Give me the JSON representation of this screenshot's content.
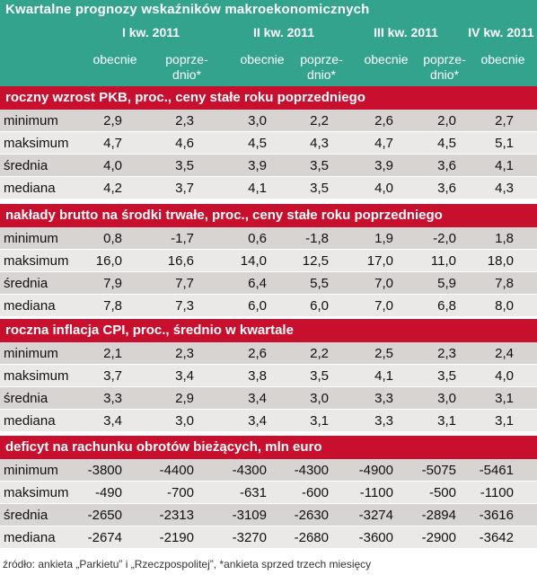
{
  "title": "Kwartalne prognozy wskaźników makroekonomicznych",
  "quarters": [
    "I kw. 2011",
    "II kw. 2011",
    "III kw. 2011",
    "IV kw. 2011"
  ],
  "subheaders": [
    "obecnie",
    "poprze-\ndnio*",
    "obecnie",
    "poprze-\ndnio*",
    "obecnie",
    "poprze-\ndnio*",
    "obecnie"
  ],
  "sections": [
    {
      "title": "roczny wzrost PKB, proc., ceny stałe roku poprzedniego",
      "rows": [
        {
          "label": "minimum",
          "values": [
            "2,9",
            "2,3",
            "3,0",
            "2,2",
            "2,6",
            "2,0",
            "2,7"
          ]
        },
        {
          "label": "maksimum",
          "values": [
            "4,7",
            "4,6",
            "4,5",
            "4,3",
            "4,7",
            "4,5",
            "5,1"
          ]
        },
        {
          "label": "średnia",
          "values": [
            "4,0",
            "3,5",
            "3,9",
            "3,5",
            "3,9",
            "3,6",
            "4,1"
          ]
        },
        {
          "label": "mediana",
          "values": [
            "4,2",
            "3,7",
            "4,1",
            "3,5",
            "4,0",
            "3,6",
            "4,3"
          ]
        }
      ]
    },
    {
      "title": "nakłady brutto na środki trwałe, proc., ceny stałe roku poprzedniego",
      "rows": [
        {
          "label": "minimum",
          "values": [
            "0,8",
            "-1,7",
            "0,6",
            "-1,8",
            "1,9",
            "-2,0",
            "1,8"
          ]
        },
        {
          "label": "maksimum",
          "values": [
            "16,0",
            "16,6",
            "14,0",
            "12,5",
            "17,0",
            "11,0",
            "18,0"
          ]
        },
        {
          "label": "średnia",
          "values": [
            "7,9",
            "7,7",
            "6,4",
            "5,5",
            "7,0",
            "5,9",
            "7,8"
          ]
        },
        {
          "label": "mediana",
          "values": [
            "7,8",
            "7,3",
            "6,0",
            "6,0",
            "7,0",
            "6,8",
            "8,0"
          ]
        }
      ]
    },
    {
      "title": "roczna inflacja CPI, proc., średnio w kwartale",
      "rows": [
        {
          "label": "minimum",
          "values": [
            "2,1",
            "2,3",
            "2,6",
            "2,2",
            "2,5",
            "2,3",
            "2,4"
          ]
        },
        {
          "label": "maksimum",
          "values": [
            "3,7",
            "3,4",
            "3,8",
            "3,5",
            "4,1",
            "3,5",
            "4,0"
          ]
        },
        {
          "label": "średnia",
          "values": [
            "3,3",
            "2,9",
            "3,4",
            "3,0",
            "3,3",
            "3,0",
            "3,1"
          ]
        },
        {
          "label": "mediana",
          "values": [
            "3,4",
            "3,0",
            "3,4",
            "3,1",
            "3,3",
            "3,1",
            "3,1"
          ]
        }
      ]
    },
    {
      "title": "deficyt na rachunku obrotów bieżących, mln euro",
      "rows": [
        {
          "label": "minimum",
          "values": [
            "-3800",
            "-4400",
            "-4300",
            "-4300",
            "-4900",
            "-5075",
            "-5461"
          ]
        },
        {
          "label": "maksimum",
          "values": [
            "-490",
            "-700",
            "-631",
            "-600",
            "-1100",
            "-500",
            "-1100"
          ]
        },
        {
          "label": "średnia",
          "values": [
            "-2650",
            "-2313",
            "-3109",
            "-2630",
            "-3274",
            "-2894",
            "-3616"
          ]
        },
        {
          "label": "mediana",
          "values": [
            "-2674",
            "-2190",
            "-3270",
            "-2680",
            "-3600",
            "-2900",
            "-3642"
          ]
        }
      ]
    }
  ],
  "footnote": "źródło: ankieta „Parkietu” i „Rzeczpospolitej”, *ankieta sprzed trzech miesięcy",
  "colors": {
    "header_bg": "#33a38d",
    "section_bg": "#c8102e",
    "row_odd": "#d7d4d2",
    "row_even": "#ebe9e7"
  }
}
